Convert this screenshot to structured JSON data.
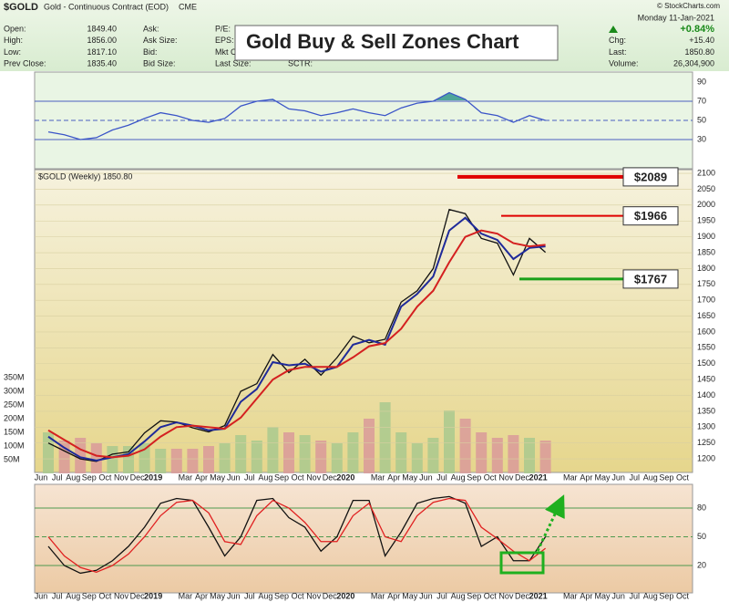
{
  "header": {
    "symbol": "$GOLD",
    "name": "Gold - Continuous Contract (EOD)",
    "exchange": "CME",
    "left": [
      {
        "label": "Open:",
        "value": "1849.40"
      },
      {
        "label": "High:",
        "value": "1856.00"
      },
      {
        "label": "Low:",
        "value": "1817.10"
      },
      {
        "label": "Prev Close:",
        "value": "1835.40"
      }
    ],
    "mid": [
      "Ask:",
      "Ask Size:",
      "Bid:",
      "Bid Size:"
    ],
    "mid2": [
      "P/E:",
      "EPS:",
      "Mkt Cap:",
      "Last Size:"
    ],
    "sctr": "SCTR:",
    "credit": "© StockCharts.com",
    "date": "Monday 11-Jan-2021",
    "change_pct": "+0.84%",
    "right": [
      {
        "label": "Chg:",
        "value": "+15.40"
      },
      {
        "label": "Last:",
        "value": "1850.80"
      },
      {
        "label": "Volume:",
        "value": "26,304,900"
      }
    ],
    "headline": "Gold Buy & Sell Zones Chart"
  },
  "chart_data": [
    {
      "type": "line",
      "ylim": [
        0,
        100
      ],
      "yticks": [
        30,
        50,
        70,
        90
      ],
      "grid": [
        30,
        50,
        70
      ],
      "fill_above": 70,
      "fill_color": "#4fa59a",
      "series": [
        {
          "color": "#3b55c8",
          "values": [
            38,
            35,
            30,
            32,
            40,
            45,
            52,
            58,
            55,
            50,
            48,
            52,
            65,
            70,
            72,
            62,
            60,
            55,
            58,
            62,
            58,
            55,
            63,
            68,
            70,
            79,
            72,
            58,
            55,
            48,
            55,
            50,
            null,
            null,
            null,
            null,
            null,
            null,
            null,
            null,
            null
          ]
        }
      ]
    },
    {
      "type": "line",
      "title": "$GOLD (Weekly) 1850.80",
      "ylim": [
        1160,
        2110
      ],
      "yticks": [
        1200,
        1250,
        1300,
        1350,
        1400,
        1450,
        1500,
        1550,
        1600,
        1650,
        1700,
        1750,
        1800,
        1850,
        1900,
        1950,
        2000,
        2050,
        2100
      ],
      "categories": [
        "Jun",
        "Jul",
        "Aug",
        "Sep",
        "Oct",
        "Nov",
        "Dec",
        "2019",
        null,
        "Mar",
        "Apr",
        "May",
        "Jun",
        "Jul",
        "Aug",
        "Sep",
        "Oct",
        "Nov",
        "Dec",
        "2020",
        null,
        "Mar",
        "Apr",
        "May",
        "Jun",
        "Jul",
        "Aug",
        "Sep",
        "Oct",
        "Nov",
        "Dec",
        "2021",
        null,
        "Mar",
        "Apr",
        "May",
        "Jun",
        "Jul",
        "Aug",
        "Sep",
        "Oct"
      ],
      "series": [
        {
          "color": "#111111",
          "values": [
            1250,
            1225,
            1200,
            1192,
            1215,
            1222,
            1282,
            1320,
            1316,
            1298,
            1285,
            1305,
            1413,
            1437,
            1529,
            1472,
            1514,
            1464,
            1519,
            1587,
            1566,
            1577,
            1694,
            1730,
            1800,
            1986,
            1973,
            1895,
            1880,
            1780,
            1895,
            1851,
            null,
            null,
            null,
            null,
            null,
            null,
            null,
            null,
            null
          ]
        },
        {
          "color": "#1f2a9a",
          "values": [
            1270,
            1235,
            1205,
            1195,
            1205,
            1215,
            1255,
            1300,
            1315,
            1305,
            1290,
            1295,
            1380,
            1420,
            1505,
            1495,
            1500,
            1475,
            1490,
            1560,
            1575,
            1560,
            1680,
            1720,
            1775,
            1920,
            1960,
            1910,
            1890,
            1830,
            1865,
            1870,
            null,
            null,
            null,
            null,
            null,
            null,
            null,
            null,
            null
          ]
        },
        {
          "color": "#d42020",
          "values": [
            1290,
            1260,
            1230,
            1210,
            1205,
            1210,
            1230,
            1270,
            1300,
            1305,
            1300,
            1295,
            1330,
            1390,
            1450,
            1480,
            1490,
            1490,
            1490,
            1520,
            1555,
            1565,
            1610,
            1680,
            1730,
            1820,
            1900,
            1920,
            1910,
            1880,
            1870,
            1875,
            null,
            null,
            null,
            null,
            null,
            null,
            null,
            null,
            null
          ]
        }
      ],
      "zones": [
        {
          "value": 2089,
          "label": "$2089",
          "color": "#e00000"
        },
        {
          "value": 1966,
          "label": "$1966",
          "color": "#e00000"
        },
        {
          "value": 1767,
          "label": "$1767",
          "color": "#1aa01a"
        }
      ]
    },
    {
      "type": "bar",
      "ylim": [
        0,
        350000000
      ],
      "yticks": [
        {
          "value": 50000000,
          "label": "50M"
        },
        {
          "value": 100000000,
          "label": "100M"
        },
        {
          "value": 150000000,
          "label": "150M"
        },
        {
          "value": 200000000,
          "label": "200M"
        },
        {
          "value": 250000000,
          "label": "250M"
        },
        {
          "value": 300000000,
          "label": "300M"
        },
        {
          "value": 350000000,
          "label": "350M"
        }
      ],
      "up_color": "#a9c98e",
      "down_color": "#d99a9a",
      "values": [
        150000000,
        120000000,
        130000000,
        110000000,
        100000000,
        100000000,
        110000000,
        90000000,
        90000000,
        90000000,
        100000000,
        110000000,
        140000000,
        120000000,
        170000000,
        150000000,
        140000000,
        120000000,
        110000000,
        150000000,
        200000000,
        260000000,
        150000000,
        110000000,
        130000000,
        230000000,
        200000000,
        150000000,
        130000000,
        140000000,
        130000000,
        120000000,
        null,
        null,
        null,
        null,
        null,
        null,
        null,
        null,
        null
      ]
    },
    {
      "type": "line",
      "ylim": [
        -8,
        104
      ],
      "yticks": [
        20,
        50,
        80
      ],
      "grid": [
        20,
        50,
        80
      ],
      "categories": [
        "Jun",
        "Jul",
        "Aug",
        "Sep",
        "Oct",
        "Nov",
        "Dec",
        "2019",
        null,
        "Mar",
        "Apr",
        "May",
        "Jun",
        "Jul",
        "Aug",
        "Sep",
        "Oct",
        "Nov",
        "Dec",
        "2020",
        null,
        "Mar",
        "Apr",
        "May",
        "Jun",
        "Jul",
        "Aug",
        "Sep",
        "Oct",
        "Nov",
        "Dec",
        "2021",
        null,
        "Mar",
        "Apr",
        "May",
        "Jun",
        "Jul",
        "Aug",
        "Sep",
        "Oct"
      ],
      "series": [
        {
          "color": "#111111",
          "values": [
            40,
            20,
            12,
            15,
            25,
            40,
            60,
            85,
            90,
            88,
            60,
            30,
            50,
            88,
            90,
            70,
            60,
            35,
            50,
            88,
            88,
            30,
            55,
            85,
            90,
            92,
            85,
            40,
            50,
            25,
            25,
            50,
            null,
            null,
            null,
            null,
            null,
            null,
            null,
            null,
            null
          ]
        },
        {
          "color": "#e02020",
          "values": [
            50,
            30,
            18,
            13,
            20,
            32,
            50,
            72,
            86,
            88,
            75,
            45,
            42,
            72,
            88,
            80,
            65,
            45,
            45,
            72,
            85,
            50,
            45,
            72,
            86,
            90,
            88,
            60,
            48,
            35,
            25,
            38,
            null,
            null,
            null,
            null,
            null,
            null,
            null,
            null,
            null
          ]
        }
      ]
    }
  ]
}
